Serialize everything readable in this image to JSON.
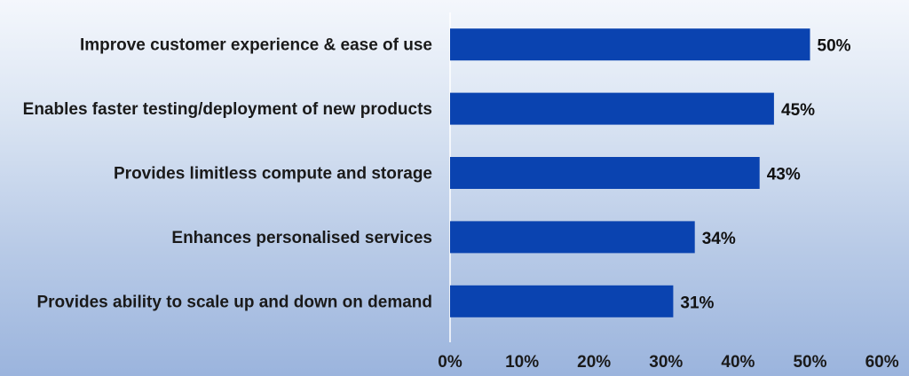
{
  "chart_data": {
    "type": "bar",
    "orientation": "horizontal",
    "categories": [
      "Improve customer experience & ease of use",
      "Enables faster testing/deployment of new products",
      "Provides limitless compute and storage",
      "Enhances personalised services",
      "Provides ability to scale up and down on demand"
    ],
    "values": [
      50,
      45,
      43,
      34,
      31
    ],
    "value_labels": [
      "50%",
      "45%",
      "43%",
      "34%",
      "31%"
    ],
    "x_ticks": [
      "0%",
      "10%",
      "20%",
      "30%",
      "40%",
      "50%",
      "60%"
    ],
    "xlim": [
      0,
      60
    ],
    "title": "",
    "xlabel": "",
    "ylabel": "",
    "grid": false,
    "legend": "none",
    "colors": {
      "bar": "#0a43b0",
      "axis": "#ffffff",
      "text": "#1a1a1a"
    }
  }
}
